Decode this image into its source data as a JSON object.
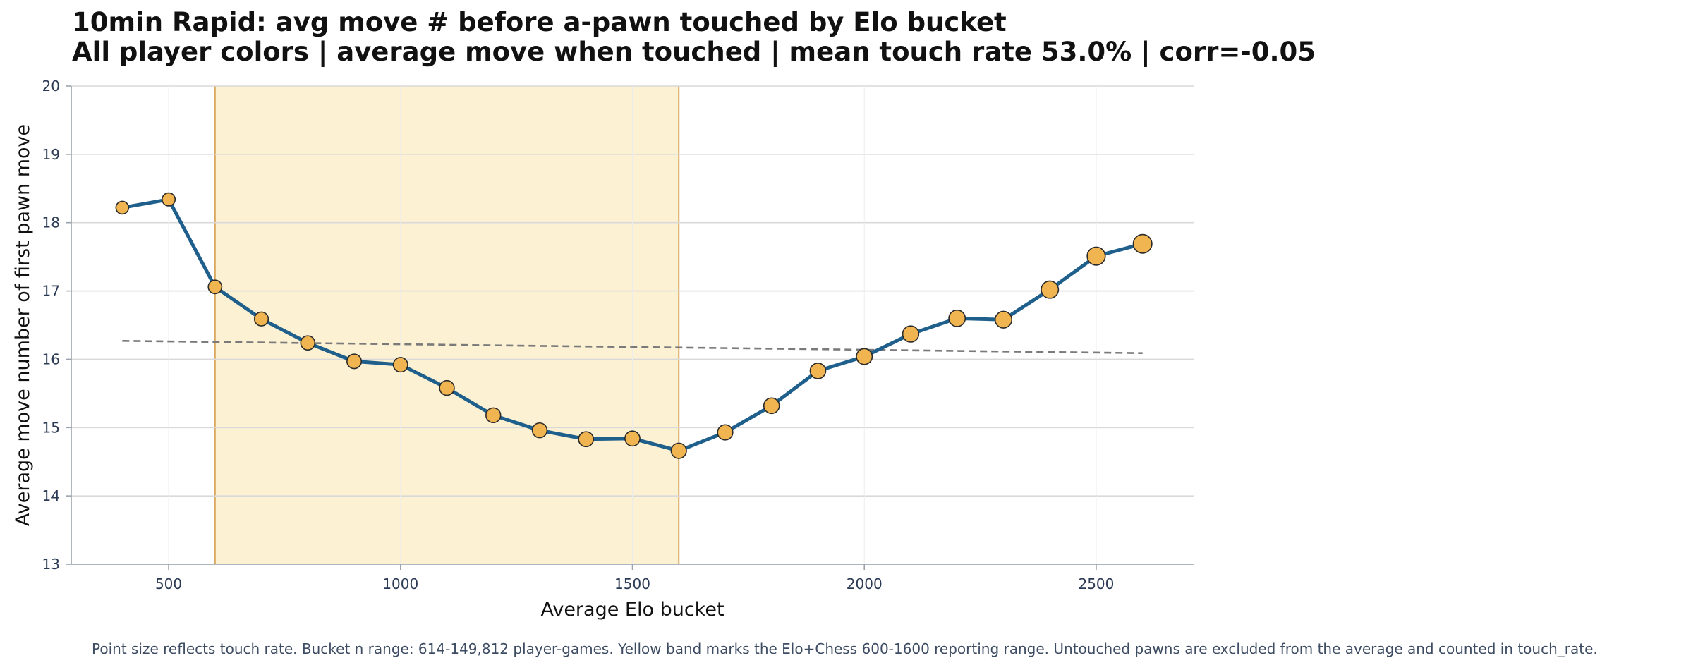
{
  "chart_data": {
    "type": "line",
    "title": "10min Rapid: avg move # before a-pawn touched by Elo bucket",
    "subtitle": "All player colors | average move when touched | mean touch rate 53.0% | corr=-0.05",
    "xlabel": "Average Elo bucket",
    "ylabel": "Average move number of first pawn move",
    "xlim": [
      290,
      2710
    ],
    "ylim": [
      13,
      20
    ],
    "x_ticks": [
      "500",
      "1000",
      "1500",
      "2000",
      "2500"
    ],
    "y_ticks": [
      "13",
      "14",
      "15",
      "16",
      "17",
      "18",
      "19",
      "20"
    ],
    "x_tick_values": [
      500,
      1000,
      1500,
      2000,
      2500
    ],
    "y_tick_values": [
      13,
      14,
      15,
      16,
      17,
      18,
      19,
      20
    ],
    "grid": true,
    "highlight_band": [
      600,
      1600
    ],
    "series": [
      {
        "x": [
          400,
          500,
          600,
          700,
          800,
          900,
          1000,
          1100,
          1200,
          1300,
          1400,
          1500,
          1600,
          1700,
          1800,
          1900,
          2000,
          2100,
          2200,
          2300,
          2400,
          2500,
          2600
        ],
        "y": [
          18.22,
          18.34,
          17.06,
          16.59,
          16.24,
          15.97,
          15.92,
          15.58,
          15.18,
          14.96,
          14.83,
          14.84,
          14.66,
          14.93,
          15.32,
          15.83,
          16.04,
          16.37,
          16.6,
          16.58,
          17.02,
          17.51,
          17.69
        ],
        "touch_rate": [
          0.45,
          0.46,
          0.48,
          0.49,
          0.5,
          0.51,
          0.51,
          0.52,
          0.52,
          0.52,
          0.53,
          0.53,
          0.54,
          0.54,
          0.55,
          0.55,
          0.56,
          0.57,
          0.58,
          0.59,
          0.61,
          0.64,
          0.66
        ]
      }
    ],
    "trend_line": {
      "x": [
        400,
        2600
      ],
      "y": [
        16.27,
        16.09
      ]
    },
    "colors": {
      "line": "#1f5f8b",
      "marker": "#f0b550",
      "marker_edge": "#2a2a2a",
      "band": "#fcf1d3",
      "band_edge": "#d9a760",
      "trend": "#7a7a7a",
      "grid": "#d9d9d9"
    },
    "footnote": "Point size reflects touch rate. Bucket n range: 614-149,812 player-games. Yellow band marks the Elo+Chess 600-1600 reporting range. Untouched pawns are excluded from the average and counted in touch_rate."
  }
}
